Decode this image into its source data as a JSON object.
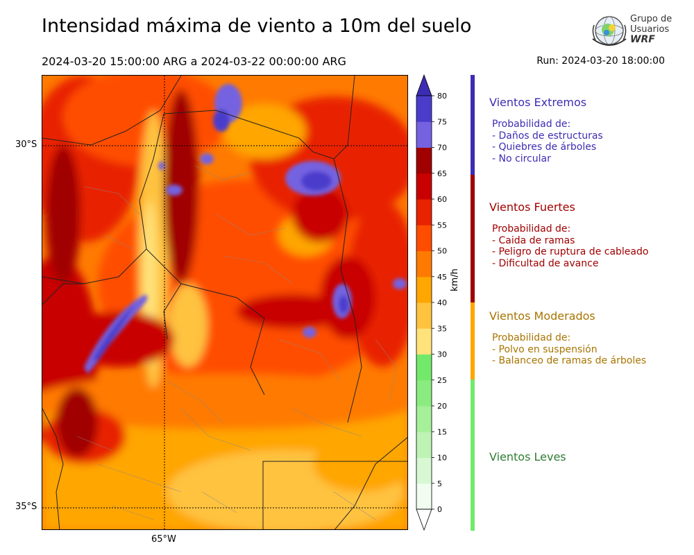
{
  "title": "Intensidad máxima de viento a 10m del suelo",
  "period": "2024-03-20 15:00:00 ARG  a  2024-03-22 00:00:00 ARG",
  "run": "Run: 2024-03-20 18:00:00",
  "logo": {
    "line1": "Grupo de",
    "line2": "Usuarios",
    "line3": "WRF"
  },
  "axes": {
    "lat_labels": [
      "30°S",
      "35°S"
    ],
    "lon_labels": [
      "65°W"
    ]
  },
  "colorbar": {
    "units": "km/h",
    "ticks": [
      "0",
      "5",
      "10",
      "15",
      "20",
      "25",
      "30",
      "35",
      "40",
      "45",
      "50",
      "55",
      "60",
      "65",
      "70",
      "75",
      "80"
    ],
    "colors": [
      "#f0fdf0",
      "#d8f8d4",
      "#bdf4b4",
      "#a6f099",
      "#8aeb80",
      "#73e96c",
      "#ffe27a",
      "#ffc33f",
      "#ffa600",
      "#ff7a00",
      "#ff4d00",
      "#e82300",
      "#c80000",
      "#a00000",
      "#7462e0",
      "#4c3ccc",
      "#3c2cb4"
    ],
    "under_color": "#ffffff",
    "over_color": "#3c2cb4"
  },
  "categories": [
    {
      "name": "Vientos Extremos",
      "color": "#3c2cb4",
      "title_color": "#3c2cb4",
      "lines": [
        "Probabilidad de:",
        "- Daños de estructuras",
        "- Quiebres de árboles",
        "- No circular"
      ]
    },
    {
      "name": "Vientos Fuertes",
      "color": "#a00000",
      "title_color": "#a00000",
      "lines": [
        "Probabilidad de:",
        "- Caida de ramas",
        "- Peligro de ruptura de cableado",
        "- Dificultad de avance"
      ]
    },
    {
      "name": "Vientos Moderados",
      "color": "#ffa600",
      "title_color": "#a87400",
      "lines": [
        "Probabilidad de:",
        "- Polvo en suspensión",
        "- Balanceo de ramas de árboles"
      ]
    },
    {
      "name": "Vientos Leves",
      "color": "#73e96c",
      "title_color": "#2e7d32",
      "lines": []
    }
  ]
}
